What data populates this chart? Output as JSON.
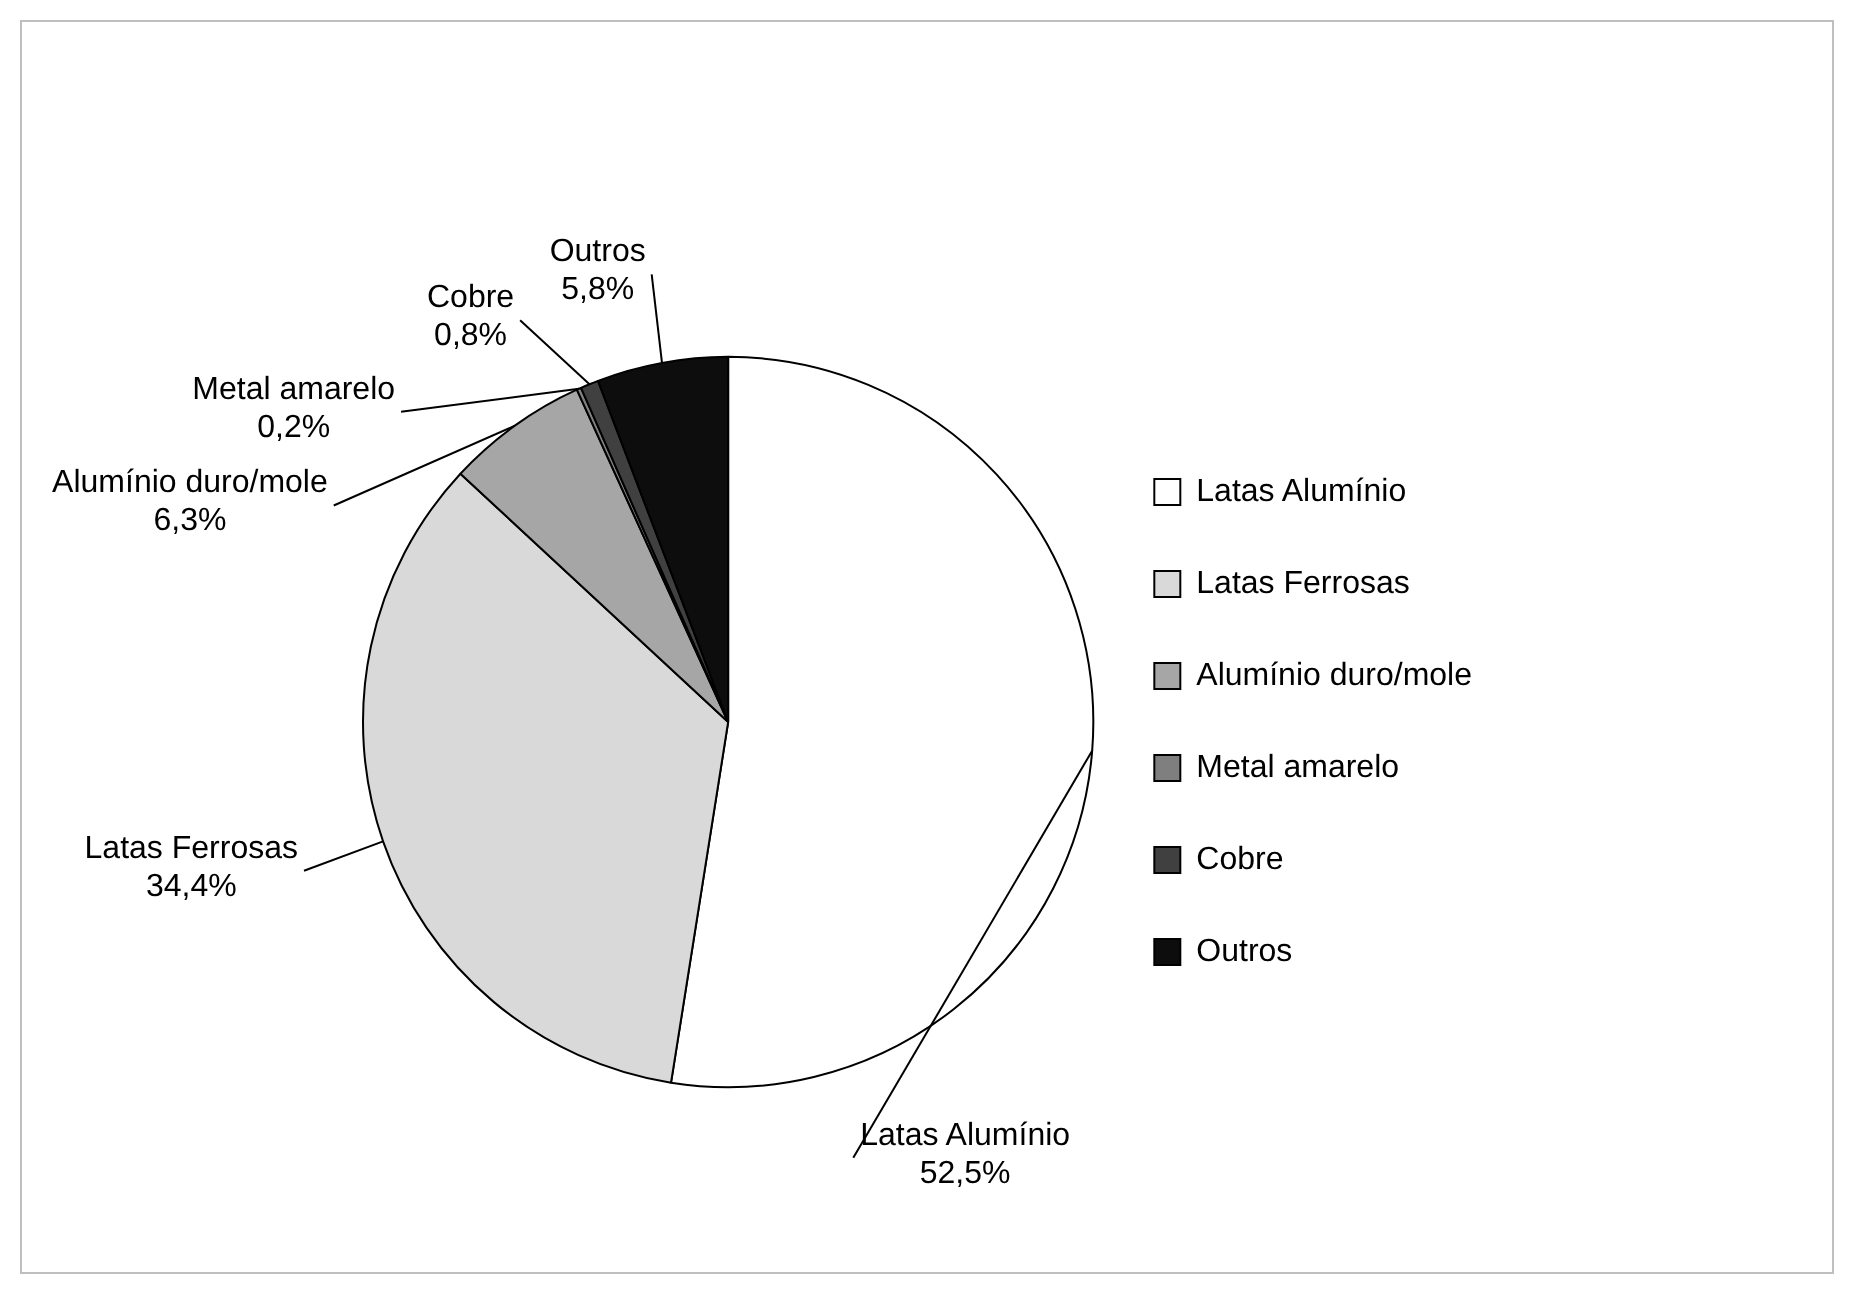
{
  "chart_data": {
    "type": "pie",
    "categories": [
      "Latas Alumínio",
      "Latas Ferrosas",
      "Alumínio duro/mole",
      "Metal amarelo",
      "Cobre",
      "Outros"
    ],
    "values": [
      52.5,
      34.4,
      6.3,
      0.2,
      0.8,
      5.8
    ],
    "value_labels": [
      "52,5%",
      "34,4%",
      "6,3%",
      "0,2%",
      "0,8%",
      "5,8%"
    ],
    "colors": [
      "#ffffff",
      "#d9d9d9",
      "#a6a6a6",
      "#7f7f7f",
      "#404040",
      "#0d0d0d"
    ],
    "legend": "right"
  }
}
